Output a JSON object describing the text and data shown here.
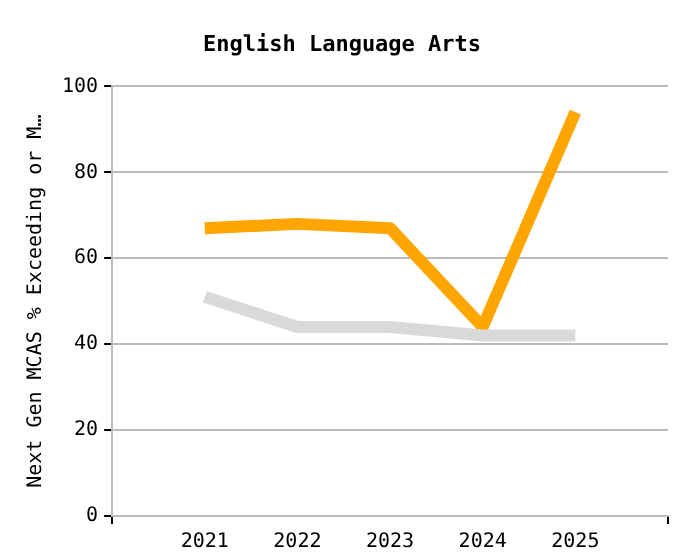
{
  "chart_data": {
    "type": "line",
    "title": "English Language Arts",
    "ylabel": "Next Gen MCAS % Exceeding or M…",
    "x": [
      2021,
      2022,
      2023,
      2024,
      2025
    ],
    "series": [
      {
        "color": "#d9d9d9",
        "values": [
          51,
          44,
          44,
          42,
          42
        ]
      },
      {
        "color": "#ffa500",
        "values": [
          67,
          68,
          67,
          44,
          94
        ]
      }
    ],
    "xlim": [
      2020,
      2026
    ],
    "xticks": [
      {
        "value": 2020,
        "label": null
      },
      2021,
      2022,
      2023,
      2024,
      2025,
      {
        "value": 2026,
        "label": null
      }
    ],
    "ylim": [
      0,
      100
    ],
    "yticks": [
      0,
      20,
      40,
      60,
      80,
      100
    ],
    "grid": "y",
    "legend": false,
    "marker": "none",
    "line_style": "solid"
  }
}
